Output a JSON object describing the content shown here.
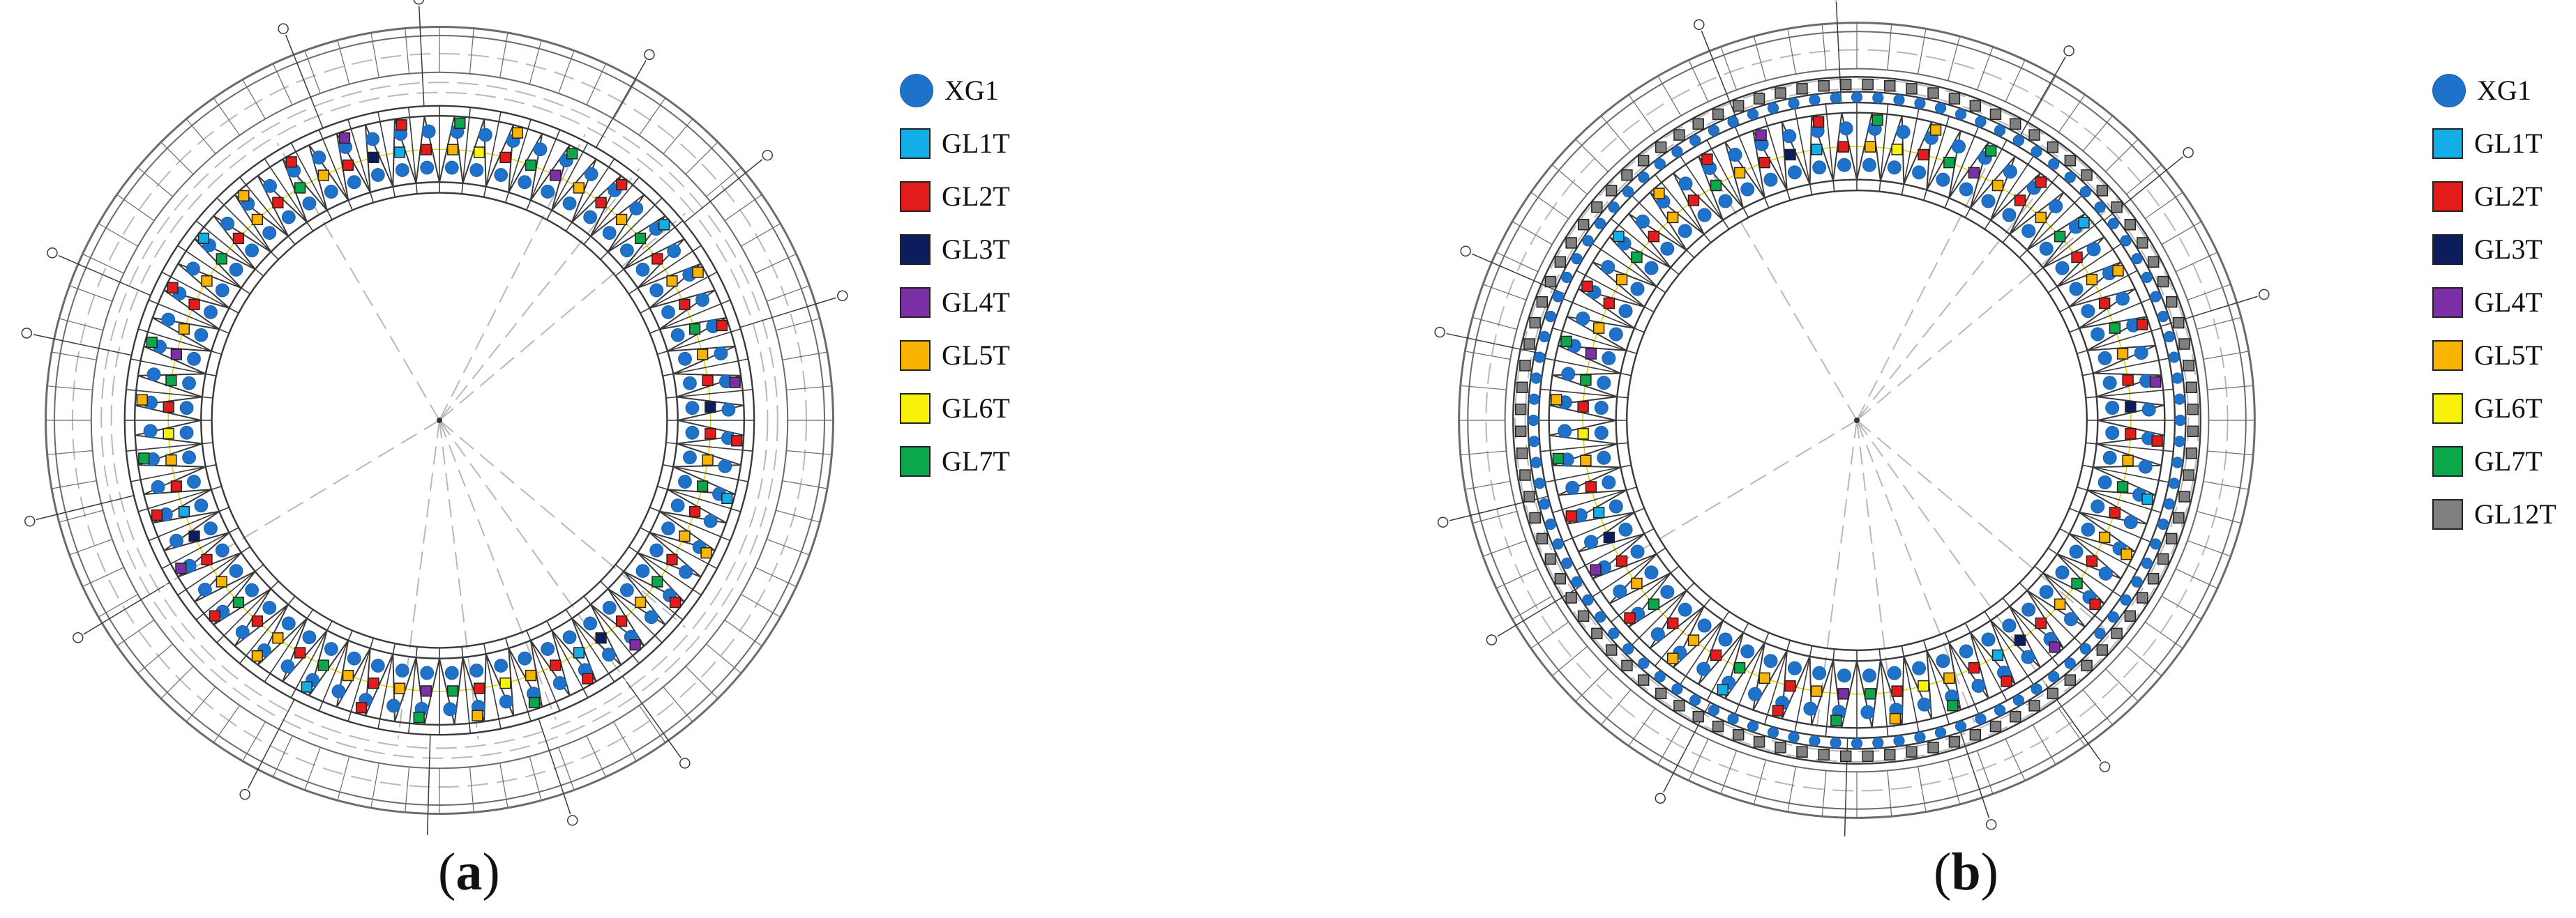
{
  "panels": [
    {
      "id": "a",
      "caption_open": "(",
      "caption_letter": "a",
      "caption_close": ")",
      "legend": [
        {
          "label": "XG1",
          "shape": "circle",
          "color": "#1f72c9"
        },
        {
          "label": "GL1T",
          "shape": "square",
          "color": "#13aee8"
        },
        {
          "label": "GL2T",
          "shape": "square",
          "color": "#e41b1b"
        },
        {
          "label": "GL3T",
          "shape": "square",
          "color": "#0c1d5e"
        },
        {
          "label": "GL4T",
          "shape": "square",
          "color": "#7d2fa6"
        },
        {
          "label": "GL5T",
          "shape": "square",
          "color": "#f9b400"
        },
        {
          "label": "GL6T",
          "shape": "square",
          "color": "#f8f20a"
        },
        {
          "label": "GL7T",
          "shape": "square",
          "color": "#0aa84a"
        }
      ]
    },
    {
      "id": "b",
      "caption_open": "(",
      "caption_letter": "b",
      "caption_close": ")",
      "legend": [
        {
          "label": "XG1",
          "shape": "circle",
          "color": "#1f72c9"
        },
        {
          "label": "GL1T",
          "shape": "square",
          "color": "#13aee8"
        },
        {
          "label": "GL2T",
          "shape": "square",
          "color": "#e41b1b"
        },
        {
          "label": "GL3T",
          "shape": "square",
          "color": "#0c1d5e"
        },
        {
          "label": "GL4T",
          "shape": "square",
          "color": "#7d2fa6"
        },
        {
          "label": "GL5T",
          "shape": "square",
          "color": "#f9b400"
        },
        {
          "label": "GL6T",
          "shape": "square",
          "color": "#f8f20a"
        },
        {
          "label": "GL7T",
          "shape": "square",
          "color": "#0aa84a"
        },
        {
          "label": "GL12T",
          "shape": "square",
          "color": "#808080"
        }
      ]
    }
  ],
  "colors": {
    "structure_line": "#3a3a3a",
    "grid_dash": "#b8b8b8",
    "outer_ring": "#6b6b6b",
    "yellow_line": "#d9d200"
  }
}
